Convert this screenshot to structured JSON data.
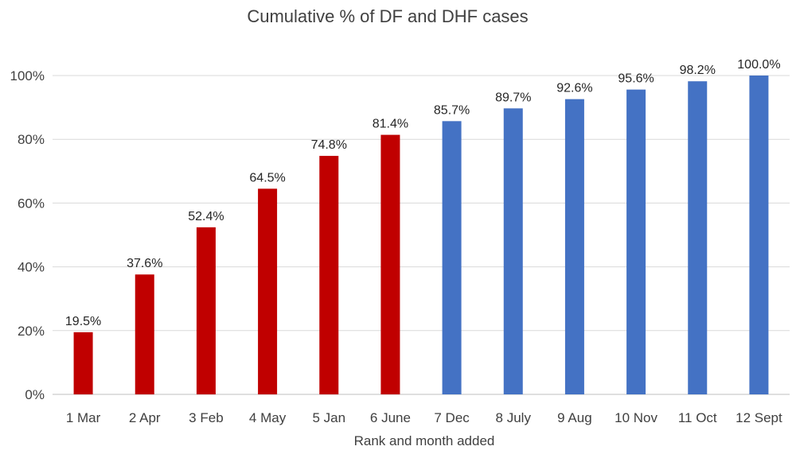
{
  "chart_data": {
    "type": "bar",
    "title": "Cumulative % of DF and DHF cases",
    "xlabel": "Rank and month added",
    "ylabel": "",
    "ylim": [
      0,
      100
    ],
    "y_ticks": [
      0,
      20,
      40,
      60,
      80,
      100
    ],
    "y_tick_labels": [
      "0%",
      "20%",
      "40%",
      "60%",
      "80%",
      "100%"
    ],
    "grid": true,
    "categories": [
      "1 Mar",
      "2 Apr",
      "3 Feb",
      "4 May",
      "5 Jan",
      "6 June",
      "7 Dec",
      "8 July",
      "9 Aug",
      "10 Nov",
      "11 Oct",
      "12 Sept"
    ],
    "values": [
      19.5,
      37.6,
      52.4,
      64.5,
      74.8,
      81.4,
      85.7,
      89.7,
      92.6,
      95.6,
      98.2,
      100.0
    ],
    "data_labels": [
      "19.5%",
      "37.6%",
      "52.4%",
      "64.5%",
      "74.8%",
      "81.4%",
      "85.7%",
      "89.7%",
      "92.6%",
      "95.6%",
      "98.2%",
      "100.0%"
    ],
    "bar_colors": [
      "#c00000",
      "#c00000",
      "#c00000",
      "#c00000",
      "#c00000",
      "#c00000",
      "#4472c4",
      "#4472c4",
      "#4472c4",
      "#4472c4",
      "#4472c4",
      "#4472c4"
    ]
  }
}
